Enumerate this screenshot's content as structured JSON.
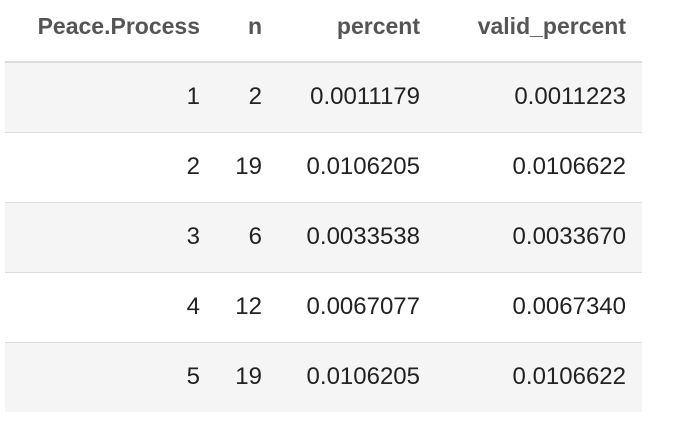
{
  "table": {
    "columns": [
      "Peace.Process",
      "n",
      "percent",
      "valid_percent"
    ],
    "rows": [
      [
        "1",
        "2",
        "0.0011179",
        "0.0011223"
      ],
      [
        "2",
        "19",
        "0.0106205",
        "0.0106622"
      ],
      [
        "3",
        "6",
        "0.0033538",
        "0.0033670"
      ],
      [
        "4",
        "12",
        "0.0067077",
        "0.0067340"
      ],
      [
        "5",
        "19",
        "0.0106205",
        "0.0106622"
      ]
    ]
  }
}
